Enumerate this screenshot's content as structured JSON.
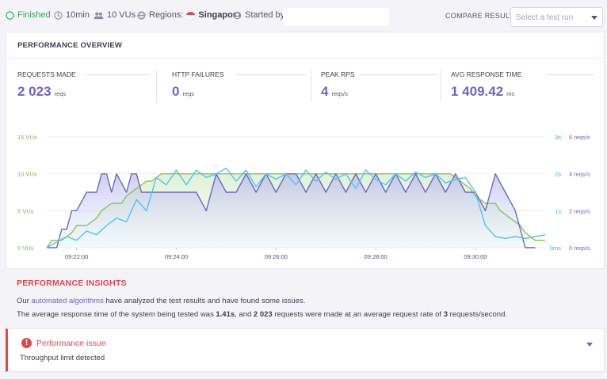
{
  "topbar": {
    "status": "Finished",
    "duration": "10min",
    "vus": "10 VUs",
    "regions_label": "Regions:",
    "region": "Singapore",
    "started_by": "Started by",
    "compare_label": "COMPARE RESULT",
    "compare_placeholder": "Select a test run"
  },
  "overview": {
    "title": "PERFORMANCE OVERVIEW",
    "metrics": [
      {
        "label": "REQUESTS MADE",
        "value": "2 023",
        "unit": "reqs"
      },
      {
        "label": "HTTP FAILURES",
        "value": "0",
        "unit": "reqs"
      },
      {
        "label": "PEAK RPS",
        "value": "4",
        "unit": "reqs/s"
      },
      {
        "label": "AVG RESPONSE TIME",
        "value": "1 409.42",
        "unit": "ms"
      }
    ]
  },
  "chart_data": {
    "type": "line",
    "x_tick_labels": [
      "09:22:00",
      "09:24:00",
      "09:26:00",
      "09:28:00",
      "09:30:00"
    ],
    "x_range_min": [
      21.4,
      31.4
    ],
    "x_ticks_min": [
      22,
      24,
      26,
      28,
      30
    ],
    "y_left": {
      "ticks": [
        0,
        5,
        10,
        15
      ],
      "labels": [
        "0 VUs",
        "5 VUs",
        "10 VUs",
        "15 VUs"
      ],
      "range": [
        0,
        15
      ],
      "color": "#7cb342"
    },
    "y_right_rt": {
      "ticks": [
        0,
        1,
        2,
        3
      ],
      "labels": [
        "0ms",
        "1s",
        "2s",
        "3s"
      ],
      "range": [
        0,
        3
      ],
      "color": "#29b6f6"
    },
    "y_right_rps": {
      "ticks": [
        0,
        2,
        4,
        6
      ],
      "labels": [
        "0 reqs/s",
        "2 reqs/s",
        "4 reqs/s",
        "6 reqs/s"
      ],
      "range": [
        0,
        6
      ],
      "color": "#6f64c7"
    },
    "series": [
      {
        "axis": "vus",
        "color": "#8bc34a",
        "x": [
          21.4,
          21.5,
          21.7,
          21.9,
          22.0,
          22.2,
          22.4,
          22.5,
          22.7,
          22.9,
          23.0,
          23.2,
          23.4,
          23.5,
          23.7,
          29.5,
          29.7,
          29.9,
          30.0,
          30.2,
          30.4,
          30.5,
          30.7,
          30.9,
          31.0,
          31.2,
          31.4
        ],
        "y": [
          0,
          1,
          1,
          2,
          3,
          3,
          4,
          5,
          6,
          6,
          7,
          8,
          9,
          9,
          10,
          10,
          9,
          8,
          7,
          6,
          6,
          5,
          4,
          3,
          2,
          1,
          1
        ]
      },
      {
        "axis": "rps",
        "color": "#6f64c7",
        "x": [
          21.4,
          21.6,
          21.7,
          21.8,
          21.9,
          22.0,
          22.2,
          22.3,
          22.4,
          22.5,
          22.6,
          22.7,
          22.8,
          23.0,
          23.1,
          23.2,
          23.3,
          23.4,
          23.6,
          23.8,
          24.0,
          24.2,
          24.4,
          24.6,
          24.8,
          25.0,
          25.2,
          25.4,
          25.6,
          25.8,
          26.0,
          26.2,
          26.4,
          26.6,
          26.8,
          27.0,
          27.2,
          27.4,
          27.6,
          27.8,
          28.0,
          28.2,
          28.4,
          28.6,
          28.8,
          29.0,
          29.2,
          29.4,
          29.6,
          29.8,
          30.0,
          30.2,
          30.4,
          30.6,
          30.8,
          31.0,
          31.2
        ],
        "y": [
          0,
          0,
          1,
          1,
          2,
          2,
          3,
          3,
          3,
          4,
          4,
          3,
          4,
          3,
          4,
          4,
          3,
          3,
          3,
          3,
          3,
          3,
          3,
          2,
          4,
          3,
          3,
          4,
          3,
          4,
          3,
          4,
          4,
          3,
          4,
          3,
          4,
          3,
          4,
          3,
          4,
          3,
          4,
          3,
          4,
          3,
          4,
          3,
          4,
          3,
          3,
          2,
          4,
          3,
          2,
          0,
          0
        ]
      },
      {
        "axis": "rt",
        "color": "#4fc3f7",
        "x": [
          21.4,
          21.6,
          21.8,
          22.0,
          22.2,
          22.4,
          22.6,
          22.8,
          23.0,
          23.2,
          23.4,
          23.6,
          23.8,
          24.0,
          24.2,
          24.4,
          24.6,
          24.8,
          25.0,
          25.2,
          25.4,
          25.6,
          25.8,
          26.0,
          26.2,
          26.4,
          26.6,
          26.8,
          27.0,
          27.2,
          27.4,
          27.6,
          27.8,
          28.0,
          28.2,
          28.4,
          28.6,
          28.8,
          29.0,
          29.2,
          29.4,
          29.6,
          29.8,
          30.0,
          30.2,
          30.4,
          30.6,
          30.8,
          31.0,
          31.2,
          31.4
        ],
        "y": [
          0,
          0.15,
          0.3,
          0.2,
          0.45,
          0.35,
          0.6,
          0.8,
          0.7,
          1.3,
          1.0,
          1.9,
          1.7,
          2.1,
          1.7,
          2.1,
          1.9,
          2.0,
          2.15,
          1.8,
          2.1,
          1.65,
          2.0,
          1.85,
          2.0,
          1.7,
          2.1,
          1.8,
          2.05,
          1.85,
          2.0,
          1.6,
          2.1,
          1.85,
          1.7,
          2.0,
          1.8,
          2.05,
          1.9,
          2.0,
          1.75,
          1.85,
          1.9,
          1.5,
          0.6,
          0.3,
          0.25,
          0.3,
          0.25,
          0.3,
          0.35
        ]
      }
    ]
  },
  "insights": {
    "title": "PERFORMANCE INSIGHTS",
    "line1_pre": "Our",
    "line1_link": "automated algorithms",
    "line1_post": "have analyzed the test results and have found some issues.",
    "line2_a": "The average response time of the system being tested was",
    "line2_rt": "1.41s",
    "line2_b": ", and",
    "line2_reqs": "2 023",
    "line2_c": "requests were made at an average request rate of",
    "line2_rate": "3",
    "line2_d": "requests/second."
  },
  "issue": {
    "title": "Performance issue",
    "subtitle": "Throughput limit detected"
  },
  "colors": {
    "accent": "#6f64c7",
    "error": "#e0484b",
    "success": "#2fa84f"
  }
}
